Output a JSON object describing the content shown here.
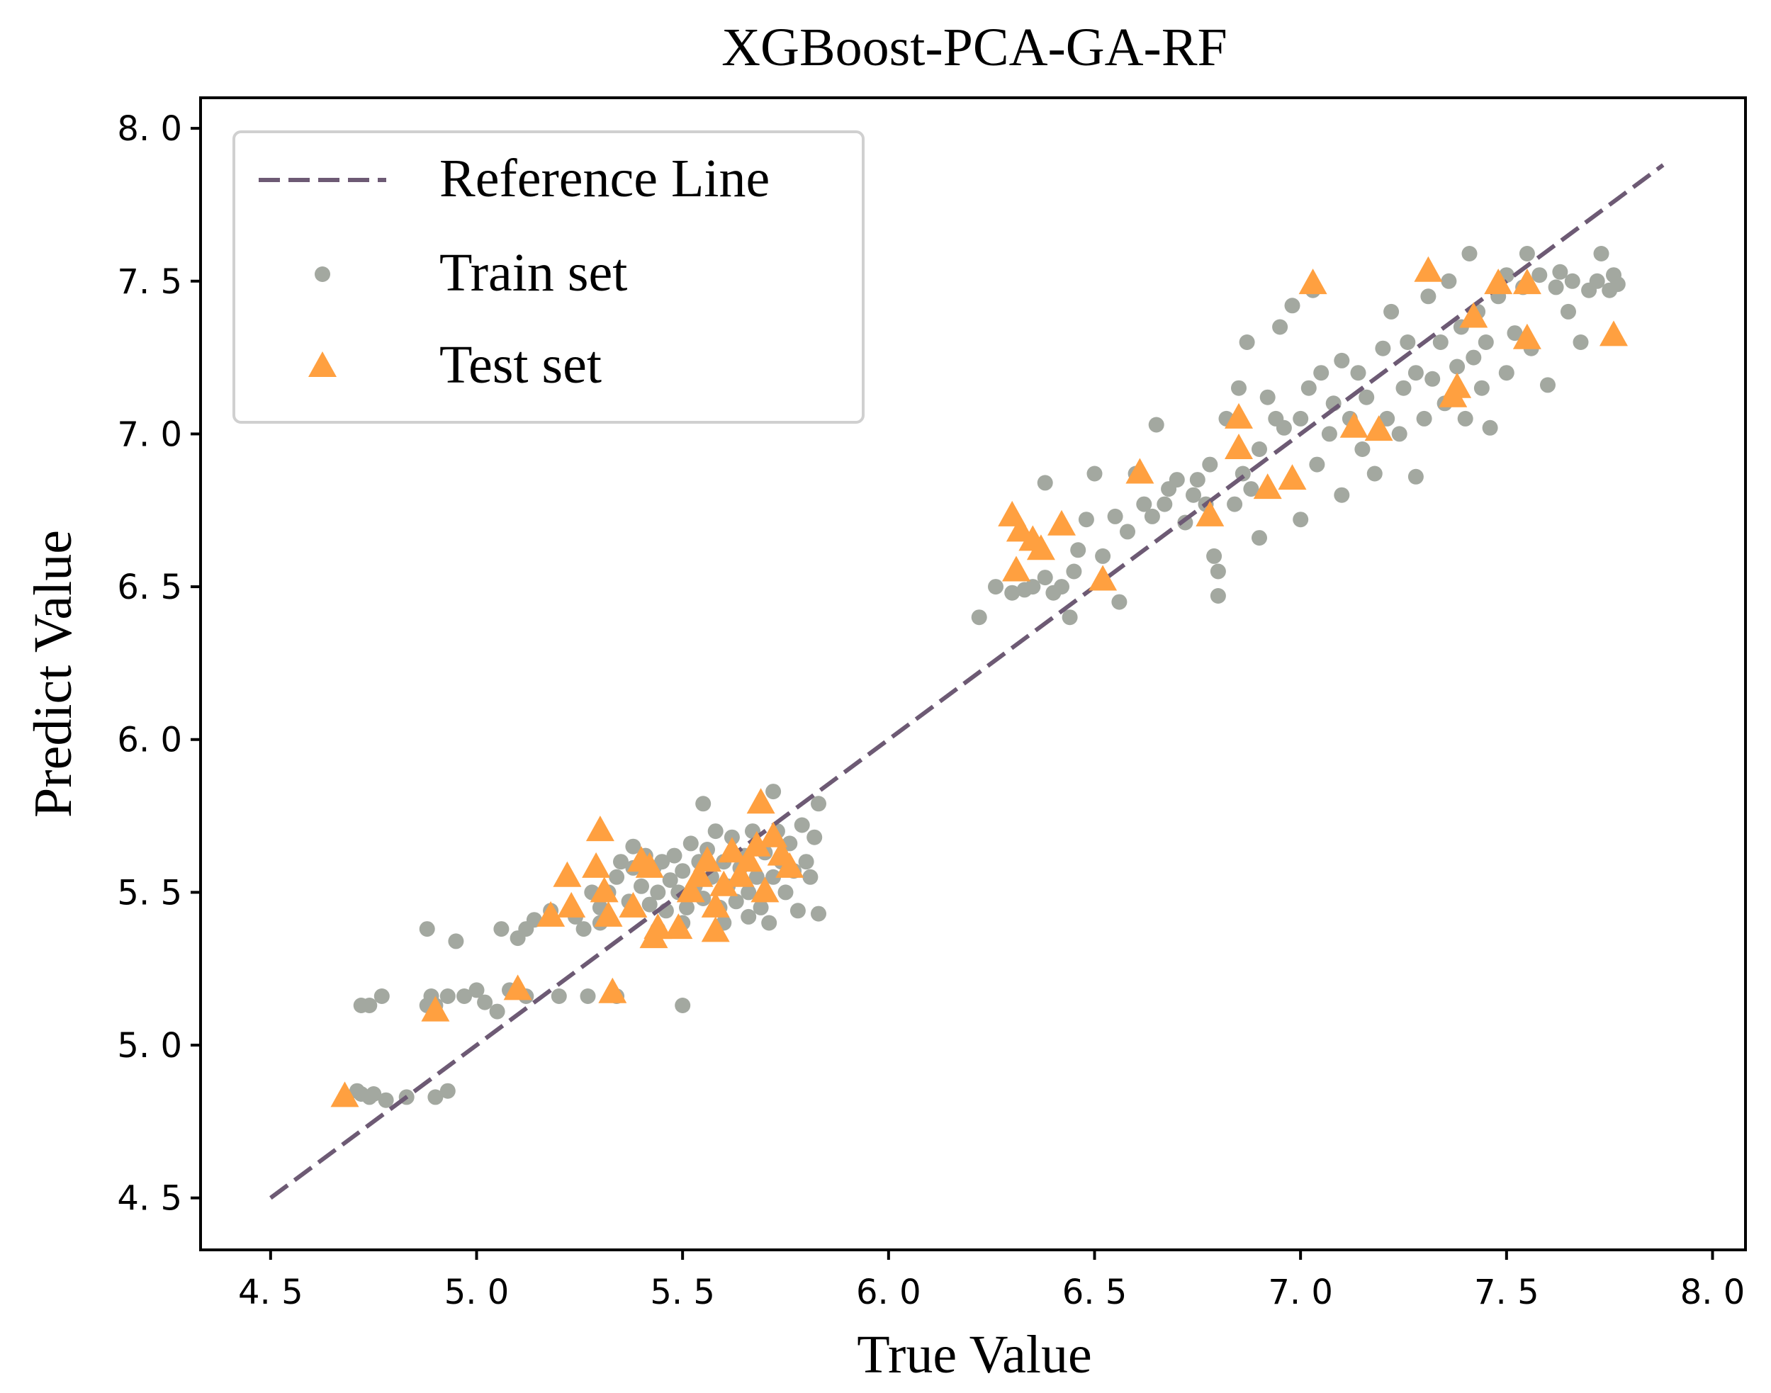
{
  "chart_data": {
    "type": "scatter",
    "title": "XGBoost-PCA-GA-RF",
    "xlabel": "True Value",
    "ylabel": "Predict Value",
    "xlim": [
      4.33,
      8.08
    ],
    "ylim": [
      4.33,
      8.1
    ],
    "xticks": [
      4.5,
      5.0,
      5.5,
      6.0,
      6.5,
      7.0,
      7.5,
      8.0
    ],
    "yticks": [
      4.5,
      5.0,
      5.5,
      6.0,
      6.5,
      7.0,
      7.5,
      8.0
    ],
    "xtick_labels": [
      "4. 5",
      "5. 0",
      "5. 5",
      "6. 0",
      "6. 5",
      "7. 0",
      "7. 5",
      "8. 0"
    ],
    "ytick_labels": [
      "4. 5",
      "5. 0",
      "5. 5",
      "6. 0",
      "6. 5",
      "7. 0",
      "7. 5",
      "8. 0"
    ],
    "grid": false,
    "legend_position": "top-left",
    "reference_line": {
      "name": "Reference Line",
      "x": [
        4.5,
        7.88
      ],
      "y": [
        4.5,
        7.88
      ],
      "color": "#6d5a74",
      "style": "dashed"
    },
    "series": [
      {
        "name": "Train set",
        "marker": "circle",
        "color": "#a3a8a0",
        "points": [
          [
            4.71,
            4.85
          ],
          [
            4.72,
            4.84
          ],
          [
            4.74,
            4.83
          ],
          [
            4.75,
            4.84
          ],
          [
            4.78,
            4.82
          ],
          [
            4.83,
            4.83
          ],
          [
            4.9,
            4.83
          ],
          [
            4.93,
            4.85
          ],
          [
            4.72,
            5.13
          ],
          [
            4.74,
            5.13
          ],
          [
            4.77,
            5.16
          ],
          [
            4.88,
            5.13
          ],
          [
            4.89,
            5.16
          ],
          [
            4.9,
            5.13
          ],
          [
            4.93,
            5.16
          ],
          [
            4.97,
            5.16
          ],
          [
            5.0,
            5.18
          ],
          [
            5.02,
            5.14
          ],
          [
            5.05,
            5.11
          ],
          [
            5.08,
            5.18
          ],
          [
            5.12,
            5.16
          ],
          [
            4.88,
            5.38
          ],
          [
            4.95,
            5.34
          ],
          [
            5.06,
            5.38
          ],
          [
            5.1,
            5.35
          ],
          [
            5.12,
            5.38
          ],
          [
            5.14,
            5.41
          ],
          [
            5.18,
            5.44
          ],
          [
            5.2,
            5.16
          ],
          [
            5.24,
            5.42
          ],
          [
            5.26,
            5.38
          ],
          [
            5.28,
            5.5
          ],
          [
            5.27,
            5.16
          ],
          [
            5.3,
            5.45
          ],
          [
            5.32,
            5.5
          ],
          [
            5.34,
            5.55
          ],
          [
            5.35,
            5.6
          ],
          [
            5.37,
            5.47
          ],
          [
            5.38,
            5.65
          ],
          [
            5.4,
            5.52
          ],
          [
            5.41,
            5.62
          ],
          [
            5.42,
            5.46
          ],
          [
            5.43,
            5.58
          ],
          [
            5.44,
            5.5
          ],
          [
            5.45,
            5.6
          ],
          [
            5.46,
            5.44
          ],
          [
            5.47,
            5.54
          ],
          [
            5.48,
            5.62
          ],
          [
            5.49,
            5.5
          ],
          [
            5.5,
            5.57
          ],
          [
            5.51,
            5.45
          ],
          [
            5.52,
            5.66
          ],
          [
            5.53,
            5.52
          ],
          [
            5.54,
            5.6
          ],
          [
            5.55,
            5.79
          ],
          [
            5.55,
            5.48
          ],
          [
            5.56,
            5.64
          ],
          [
            5.57,
            5.55
          ],
          [
            5.58,
            5.7
          ],
          [
            5.59,
            5.45
          ],
          [
            5.6,
            5.6
          ],
          [
            5.61,
            5.52
          ],
          [
            5.62,
            5.68
          ],
          [
            5.63,
            5.47
          ],
          [
            5.64,
            5.58
          ],
          [
            5.65,
            5.62
          ],
          [
            5.66,
            5.5
          ],
          [
            5.67,
            5.7
          ],
          [
            5.68,
            5.55
          ],
          [
            5.69,
            5.45
          ],
          [
            5.7,
            5.63
          ],
          [
            5.71,
            5.4
          ],
          [
            5.72,
            5.83
          ],
          [
            5.72,
            5.55
          ],
          [
            5.73,
            5.7
          ],
          [
            5.74,
            5.6
          ],
          [
            5.75,
            5.5
          ],
          [
            5.76,
            5.66
          ],
          [
            5.77,
            5.57
          ],
          [
            5.78,
            5.44
          ],
          [
            5.79,
            5.72
          ],
          [
            5.8,
            5.6
          ],
          [
            5.81,
            5.55
          ],
          [
            5.82,
            5.68
          ],
          [
            5.83,
            5.43
          ],
          [
            5.83,
            5.79
          ],
          [
            5.38,
            5.58
          ],
          [
            5.44,
            5.38
          ],
          [
            5.5,
            5.13
          ],
          [
            5.34,
            5.16
          ],
          [
            5.6,
            5.4
          ],
          [
            5.66,
            5.42
          ],
          [
            5.3,
            5.4
          ],
          [
            5.5,
            5.4
          ],
          [
            6.22,
            6.4
          ],
          [
            6.26,
            6.5
          ],
          [
            6.3,
            6.48
          ],
          [
            6.33,
            6.49
          ],
          [
            6.35,
            6.5
          ],
          [
            6.38,
            6.53
          ],
          [
            6.4,
            6.48
          ],
          [
            6.42,
            6.5
          ],
          [
            6.44,
            6.4
          ],
          [
            6.45,
            6.55
          ],
          [
            6.46,
            6.62
          ],
          [
            6.38,
            6.84
          ],
          [
            6.48,
            6.72
          ],
          [
            6.5,
            6.87
          ],
          [
            6.52,
            6.6
          ],
          [
            6.55,
            6.73
          ],
          [
            6.56,
            6.45
          ],
          [
            6.58,
            6.68
          ],
          [
            6.6,
            6.87
          ],
          [
            6.62,
            6.77
          ],
          [
            6.64,
            6.73
          ],
          [
            6.65,
            7.03
          ],
          [
            6.67,
            6.77
          ],
          [
            6.68,
            6.82
          ],
          [
            6.7,
            6.85
          ],
          [
            6.72,
            6.71
          ],
          [
            6.74,
            6.8
          ],
          [
            6.75,
            6.85
          ],
          [
            6.77,
            6.77
          ],
          [
            6.78,
            6.9
          ],
          [
            6.79,
            6.6
          ],
          [
            6.8,
            6.47
          ],
          [
            6.8,
            6.55
          ],
          [
            6.82,
            7.05
          ],
          [
            6.84,
            6.77
          ],
          [
            6.85,
            7.15
          ],
          [
            6.86,
            6.87
          ],
          [
            6.87,
            7.3
          ],
          [
            6.88,
            6.82
          ],
          [
            6.9,
            6.66
          ],
          [
            6.9,
            6.95
          ],
          [
            6.92,
            7.12
          ],
          [
            6.94,
            7.05
          ],
          [
            6.95,
            7.35
          ],
          [
            6.96,
            7.02
          ],
          [
            6.98,
            7.42
          ],
          [
            7.0,
            6.72
          ],
          [
            7.0,
            7.05
          ],
          [
            7.02,
            7.15
          ],
          [
            7.03,
            7.47
          ],
          [
            7.04,
            6.9
          ],
          [
            7.05,
            7.2
          ],
          [
            7.07,
            7.0
          ],
          [
            7.08,
            7.1
          ],
          [
            7.1,
            7.24
          ],
          [
            7.1,
            6.8
          ],
          [
            7.12,
            7.05
          ],
          [
            7.14,
            7.2
          ],
          [
            7.15,
            6.95
          ],
          [
            7.16,
            7.12
          ],
          [
            7.18,
            6.87
          ],
          [
            7.2,
            7.28
          ],
          [
            7.21,
            7.05
          ],
          [
            7.22,
            7.4
          ],
          [
            7.24,
            7.0
          ],
          [
            7.25,
            7.15
          ],
          [
            7.26,
            7.3
          ],
          [
            7.28,
            6.86
          ],
          [
            7.28,
            7.2
          ],
          [
            7.3,
            7.05
          ],
          [
            7.31,
            7.45
          ],
          [
            7.32,
            7.18
          ],
          [
            7.34,
            7.3
          ],
          [
            7.35,
            7.1
          ],
          [
            7.36,
            7.5
          ],
          [
            7.38,
            7.22
          ],
          [
            7.39,
            7.35
          ],
          [
            7.4,
            7.05
          ],
          [
            7.41,
            7.59
          ],
          [
            7.42,
            7.25
          ],
          [
            7.43,
            7.4
          ],
          [
            7.44,
            7.15
          ],
          [
            7.45,
            7.3
          ],
          [
            7.46,
            7.02
          ],
          [
            7.48,
            7.45
          ],
          [
            7.5,
            7.52
          ],
          [
            7.5,
            7.2
          ],
          [
            7.52,
            7.33
          ],
          [
            7.54,
            7.48
          ],
          [
            7.55,
            7.59
          ],
          [
            7.56,
            7.28
          ],
          [
            7.58,
            7.52
          ],
          [
            7.6,
            7.16
          ],
          [
            7.62,
            7.48
          ],
          [
            7.63,
            7.53
          ],
          [
            7.65,
            7.4
          ],
          [
            7.66,
            7.5
          ],
          [
            7.68,
            7.3
          ],
          [
            7.7,
            7.47
          ],
          [
            7.72,
            7.5
          ],
          [
            7.73,
            7.59
          ],
          [
            7.75,
            7.47
          ],
          [
            7.76,
            7.52
          ],
          [
            7.77,
            7.49
          ]
        ]
      },
      {
        "name": "Test set",
        "marker": "triangle",
        "color": "#ffa040",
        "points": [
          [
            4.68,
            4.83
          ],
          [
            4.9,
            5.11
          ],
          [
            5.1,
            5.18
          ],
          [
            5.18,
            5.42
          ],
          [
            5.22,
            5.55
          ],
          [
            5.23,
            5.45
          ],
          [
            5.29,
            5.58
          ],
          [
            5.3,
            5.7
          ],
          [
            5.31,
            5.5
          ],
          [
            5.32,
            5.42
          ],
          [
            5.33,
            5.17
          ],
          [
            5.38,
            5.45
          ],
          [
            5.4,
            5.6
          ],
          [
            5.42,
            5.58
          ],
          [
            5.43,
            5.35
          ],
          [
            5.44,
            5.38
          ],
          [
            5.49,
            5.38
          ],
          [
            5.52,
            5.5
          ],
          [
            5.54,
            5.55
          ],
          [
            5.56,
            5.6
          ],
          [
            5.58,
            5.37
          ],
          [
            5.58,
            5.45
          ],
          [
            5.6,
            5.52
          ],
          [
            5.62,
            5.63
          ],
          [
            5.64,
            5.55
          ],
          [
            5.66,
            5.6
          ],
          [
            5.68,
            5.65
          ],
          [
            5.69,
            5.79
          ],
          [
            5.7,
            5.5
          ],
          [
            5.72,
            5.68
          ],
          [
            5.74,
            5.62
          ],
          [
            5.76,
            5.58
          ],
          [
            6.3,
            6.73
          ],
          [
            6.31,
            6.55
          ],
          [
            6.32,
            6.68
          ],
          [
            6.35,
            6.65
          ],
          [
            6.37,
            6.62
          ],
          [
            6.42,
            6.7
          ],
          [
            6.52,
            6.52
          ],
          [
            6.61,
            6.87
          ],
          [
            6.78,
            6.73
          ],
          [
            6.85,
            7.05
          ],
          [
            6.85,
            6.95
          ],
          [
            6.92,
            6.82
          ],
          [
            6.98,
            6.85
          ],
          [
            7.03,
            7.49
          ],
          [
            7.13,
            7.02
          ],
          [
            7.19,
            7.01
          ],
          [
            7.31,
            7.53
          ],
          [
            7.37,
            7.12
          ],
          [
            7.38,
            7.15
          ],
          [
            7.42,
            7.38
          ],
          [
            7.48,
            7.49
          ],
          [
            7.55,
            7.49
          ],
          [
            7.55,
            7.31
          ],
          [
            7.76,
            7.32
          ]
        ]
      }
    ]
  }
}
